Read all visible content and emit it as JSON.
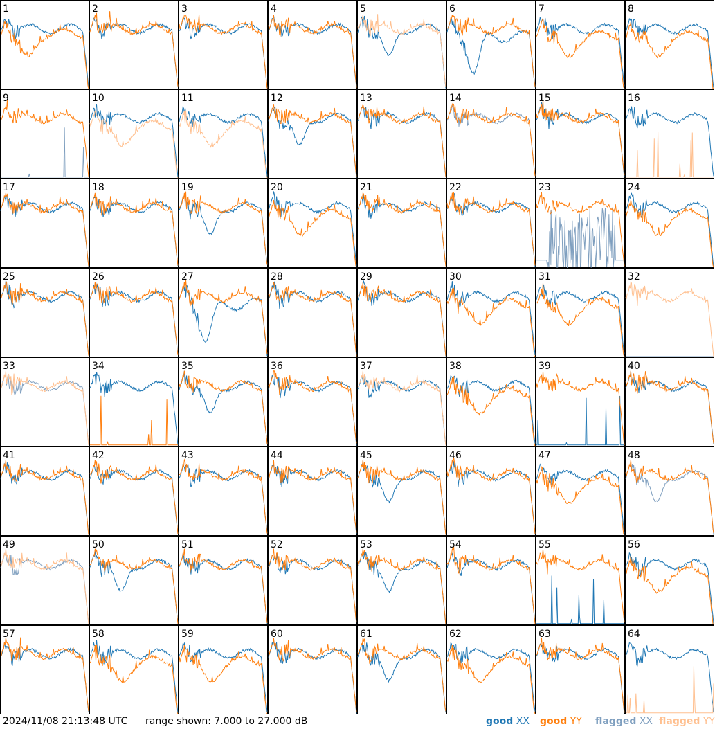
{
  "footer": {
    "timestamp": "2024/11/08 21:13:48 UTC",
    "range_text": "range shown: 7.000 to 27.000 dB"
  },
  "legend": [
    {
      "word": "good",
      "pol": "XX",
      "color": "#1f77b4"
    },
    {
      "word": "good",
      "pol": "YY",
      "color": "#ff7f0e"
    },
    {
      "word": "flagged",
      "pol": "XX",
      "color": "#7f9fbf"
    },
    {
      "word": "flagged",
      "pol": "YY",
      "color": "#ffc090"
    }
  ],
  "colors": {
    "good_xx": "#1f77b4",
    "good_yy": "#ff7f0e",
    "flagged_xx": "#7f9fbf",
    "flagged_yy": "#ffc090"
  },
  "chart_data": {
    "type": "line",
    "layout": "8x8 small multiples",
    "y_range_db": [
      7,
      27
    ],
    "panel_labels": [
      "1",
      "2",
      "3",
      "4",
      "5",
      "6",
      "7",
      "8",
      "9",
      "10",
      "11",
      "12",
      "13",
      "14",
      "15",
      "16",
      "17",
      "18",
      "19",
      "20",
      "21",
      "22",
      "23",
      "24",
      "25",
      "26",
      "27",
      "28",
      "29",
      "30",
      "31",
      "32",
      "33",
      "34",
      "35",
      "36",
      "37",
      "38",
      "39",
      "40",
      "41",
      "42",
      "43",
      "44",
      "45",
      "46",
      "47",
      "48",
      "49",
      "50",
      "51",
      "52",
      "53",
      "54",
      "55",
      "56",
      "57",
      "58",
      "59",
      "60",
      "61",
      "62",
      "63",
      "64"
    ],
    "panels": [
      {
        "id": 1,
        "xx": "good",
        "yy": "good",
        "shape": "yy-spiky-low"
      },
      {
        "id": 2,
        "xx": "good",
        "yy": "good",
        "shape": "normal"
      },
      {
        "id": 3,
        "xx": "good",
        "yy": "good",
        "shape": "normal"
      },
      {
        "id": 4,
        "xx": "good",
        "yy": "good",
        "shape": "normal"
      },
      {
        "id": 5,
        "xx": "good",
        "yy": "flagged",
        "shape": "xx-dip"
      },
      {
        "id": 6,
        "xx": "good",
        "yy": "good",
        "shape": "xx-deep-dip"
      },
      {
        "id": 7,
        "xx": "good",
        "yy": "good",
        "shape": "yy-dip"
      },
      {
        "id": 8,
        "xx": "good",
        "yy": "good",
        "shape": "yy-dip"
      },
      {
        "id": 9,
        "xx": "flagged",
        "yy": "good",
        "shape": "xx-low"
      },
      {
        "id": 10,
        "xx": "good",
        "yy": "flagged",
        "shape": "yy-dip"
      },
      {
        "id": 11,
        "xx": "good",
        "yy": "flagged",
        "shape": "yy-dip"
      },
      {
        "id": 12,
        "xx": "good",
        "yy": "good",
        "shape": "xx-dip"
      },
      {
        "id": 13,
        "xx": "good",
        "yy": "good",
        "shape": "normal"
      },
      {
        "id": 14,
        "xx": "flagged",
        "yy": "good",
        "shape": "normal"
      },
      {
        "id": 15,
        "xx": "good",
        "yy": "good",
        "shape": "normal"
      },
      {
        "id": 16,
        "xx": "good",
        "yy": "flagged",
        "shape": "yy-low"
      },
      {
        "id": 17,
        "xx": "good",
        "yy": "good",
        "shape": "normal"
      },
      {
        "id": 18,
        "xx": "good",
        "yy": "good",
        "shape": "normal"
      },
      {
        "id": 19,
        "xx": "good",
        "yy": "good",
        "shape": "xx-dip"
      },
      {
        "id": 20,
        "xx": "good",
        "yy": "good",
        "shape": "yy-dip"
      },
      {
        "id": 21,
        "xx": "good",
        "yy": "good",
        "shape": "normal"
      },
      {
        "id": 22,
        "xx": "good",
        "yy": "good",
        "shape": "normal"
      },
      {
        "id": 23,
        "xx": "flagged",
        "yy": "good",
        "shape": "xx-noisy"
      },
      {
        "id": 24,
        "xx": "good",
        "yy": "good",
        "shape": "yy-dip"
      },
      {
        "id": 25,
        "xx": "good",
        "yy": "good",
        "shape": "normal"
      },
      {
        "id": 26,
        "xx": "good",
        "yy": "good",
        "shape": "normal"
      },
      {
        "id": 27,
        "xx": "good",
        "yy": "good",
        "shape": "xx-deep-dip"
      },
      {
        "id": 28,
        "xx": "good",
        "yy": "good",
        "shape": "normal"
      },
      {
        "id": 29,
        "xx": "good",
        "yy": "good",
        "shape": "normal"
      },
      {
        "id": 30,
        "xx": "good",
        "yy": "good",
        "shape": "yy-dip"
      },
      {
        "id": 31,
        "xx": "good",
        "yy": "good",
        "shape": "yy-dip"
      },
      {
        "id": 32,
        "xx": "flagged",
        "yy": "flagged",
        "shape": "yy-only"
      },
      {
        "id": 33,
        "xx": "flagged",
        "yy": "flagged",
        "shape": "normal"
      },
      {
        "id": 34,
        "xx": "good",
        "yy": "good",
        "shape": "yy-low"
      },
      {
        "id": 35,
        "xx": "good",
        "yy": "good",
        "shape": "xx-dip"
      },
      {
        "id": 36,
        "xx": "good",
        "yy": "good",
        "shape": "normal"
      },
      {
        "id": 37,
        "xx": "good",
        "yy": "flagged",
        "shape": "normal"
      },
      {
        "id": 38,
        "xx": "good",
        "yy": "good",
        "shape": "yy-dip"
      },
      {
        "id": 39,
        "xx": "good",
        "yy": "good",
        "shape": "xx-low"
      },
      {
        "id": 40,
        "xx": "good",
        "yy": "good",
        "shape": "normal"
      },
      {
        "id": 41,
        "xx": "good",
        "yy": "good",
        "shape": "normal"
      },
      {
        "id": 42,
        "xx": "good",
        "yy": "good",
        "shape": "normal"
      },
      {
        "id": 43,
        "xx": "good",
        "yy": "good",
        "shape": "normal"
      },
      {
        "id": 44,
        "xx": "good",
        "yy": "good",
        "shape": "normal"
      },
      {
        "id": 45,
        "xx": "good",
        "yy": "good",
        "shape": "xx-dip"
      },
      {
        "id": 46,
        "xx": "good",
        "yy": "good",
        "shape": "normal"
      },
      {
        "id": 47,
        "xx": "good",
        "yy": "good",
        "shape": "yy-dip"
      },
      {
        "id": 48,
        "xx": "flagged",
        "yy": "good",
        "shape": "xx-dip"
      },
      {
        "id": 49,
        "xx": "flagged",
        "yy": "flagged",
        "shape": "normal"
      },
      {
        "id": 50,
        "xx": "good",
        "yy": "good",
        "shape": "xx-dip"
      },
      {
        "id": 51,
        "xx": "good",
        "yy": "good",
        "shape": "normal"
      },
      {
        "id": 52,
        "xx": "good",
        "yy": "good",
        "shape": "normal"
      },
      {
        "id": 53,
        "xx": "good",
        "yy": "good",
        "shape": "xx-dip"
      },
      {
        "id": 54,
        "xx": "good",
        "yy": "good",
        "shape": "normal"
      },
      {
        "id": 55,
        "xx": "good",
        "yy": "good",
        "shape": "xx-low"
      },
      {
        "id": 56,
        "xx": "good",
        "yy": "good",
        "shape": "yy-dip"
      },
      {
        "id": 57,
        "xx": "good",
        "yy": "good",
        "shape": "normal"
      },
      {
        "id": 58,
        "xx": "good",
        "yy": "good",
        "shape": "yy-dip"
      },
      {
        "id": 59,
        "xx": "good",
        "yy": "good",
        "shape": "yy-dip"
      },
      {
        "id": 60,
        "xx": "good",
        "yy": "good",
        "shape": "normal"
      },
      {
        "id": 61,
        "xx": "good",
        "yy": "good",
        "shape": "xx-dip"
      },
      {
        "id": 62,
        "xx": "good",
        "yy": "good",
        "shape": "yy-dip"
      },
      {
        "id": 63,
        "xx": "good",
        "yy": "good",
        "shape": "normal"
      },
      {
        "id": 64,
        "xx": "good",
        "yy": "flagged",
        "shape": "yy-low"
      }
    ]
  }
}
